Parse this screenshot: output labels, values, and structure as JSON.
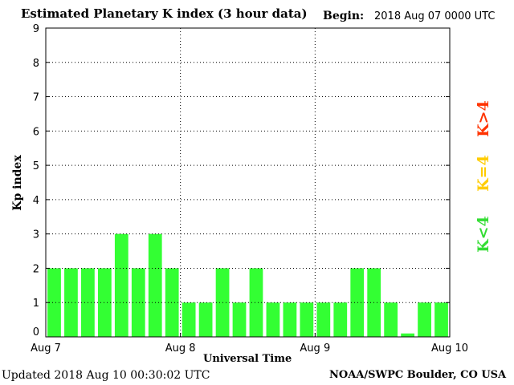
{
  "header": {
    "title": "Estimated Planetary K index (3 hour data)",
    "begin_label": "Begin:",
    "begin_value": "2018 Aug 07 0000 UTC"
  },
  "footer": {
    "updated": "Updated 2018 Aug 10 00:30:02 UTC",
    "credit": "NOAA/SWPC Boulder, CO USA"
  },
  "legend": {
    "high": "K>4",
    "equal": "K=4",
    "low": "K<4"
  },
  "colors": {
    "bar": "#33ff33",
    "high": "#ff3300",
    "equal": "#ffcc00",
    "low": "#33dd33"
  },
  "chart_data": {
    "type": "bar",
    "title": "Estimated Planetary K index (3 hour data)",
    "xlabel": "Universal Time",
    "ylabel": "Kp index",
    "ylim": [
      0,
      9
    ],
    "yticks": [
      0,
      1,
      2,
      3,
      4,
      5,
      6,
      7,
      8,
      9
    ],
    "xticks": [
      "Aug 7",
      "Aug 8",
      "Aug 9",
      "Aug 10"
    ],
    "grid": true,
    "series": [
      {
        "values": [
          2,
          2,
          2,
          2,
          3,
          2,
          3,
          2,
          1,
          1,
          2,
          1,
          2,
          1,
          1,
          1,
          1,
          1,
          2,
          2,
          1,
          0.1,
          1,
          1
        ]
      }
    ]
  }
}
